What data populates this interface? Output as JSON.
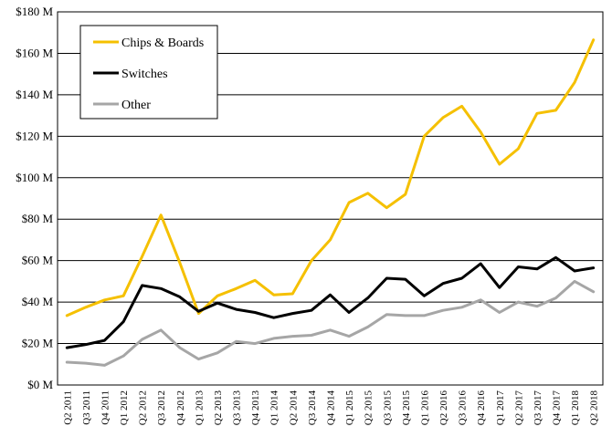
{
  "chart_data": {
    "type": "line",
    "title": "",
    "xlabel": "",
    "ylabel": "",
    "ylim": [
      0,
      180
    ],
    "y_ticks": [
      0,
      20,
      40,
      60,
      80,
      100,
      120,
      140,
      160,
      180
    ],
    "y_tick_labels": [
      "$0 M",
      "$20 M",
      "$40 M",
      "$60 M",
      "$80 M",
      "$100 M",
      "$120 M",
      "$140 M",
      "$160 M",
      "$180 M"
    ],
    "grid": "horizontal",
    "legend_position": "top-left",
    "categories": [
      "Q2 2011",
      "Q3 2011",
      "Q4 2011",
      "Q1 2012",
      "Q2 2012",
      "Q3 2012",
      "Q4 2012",
      "Q1 2013",
      "Q2 2013",
      "Q3 2013",
      "Q4 2013",
      "Q1 2014",
      "Q2 2014",
      "Q3 2014",
      "Q4 2014",
      "Q1 2015",
      "Q2 2015",
      "Q3 2015",
      "Q4 2015",
      "Q1 2016",
      "Q2 2016",
      "Q3 2016",
      "Q4 2016",
      "Q1 2017",
      "Q2 2017",
      "Q3 2017",
      "Q4 2017",
      "Q1 2018",
      "Q2 2018"
    ],
    "series": [
      {
        "name": "Chips & Boards",
        "color": "#F5C000",
        "values": [
          33.5,
          37.5,
          41,
          43,
          62,
          82,
          59,
          34.5,
          43,
          46.5,
          50.5,
          43.5,
          44,
          60,
          70,
          88,
          92.5,
          85.5,
          92,
          120,
          129,
          134.5,
          122,
          106.5,
          114,
          131,
          132.5,
          146,
          166.5
        ]
      },
      {
        "name": "Switches",
        "color": "#000000",
        "values": [
          18,
          19.5,
          21.5,
          30.5,
          48,
          46.5,
          42.5,
          35.5,
          39.5,
          36.5,
          35,
          32.5,
          34.5,
          36,
          43.5,
          35,
          42,
          51.5,
          51,
          43,
          49,
          51.5,
          58.5,
          47,
          57,
          56,
          61.5,
          55,
          56.5
        ]
      },
      {
        "name": "Other",
        "color": "#A6A6A6",
        "values": [
          11,
          10.5,
          9.5,
          14,
          22,
          26.5,
          18,
          12.5,
          15.5,
          21,
          20,
          22.5,
          23.5,
          24,
          26.5,
          23.5,
          28,
          34,
          33.5,
          33.5,
          36,
          37.5,
          41,
          35,
          40,
          38,
          42,
          50,
          45
        ]
      }
    ]
  }
}
